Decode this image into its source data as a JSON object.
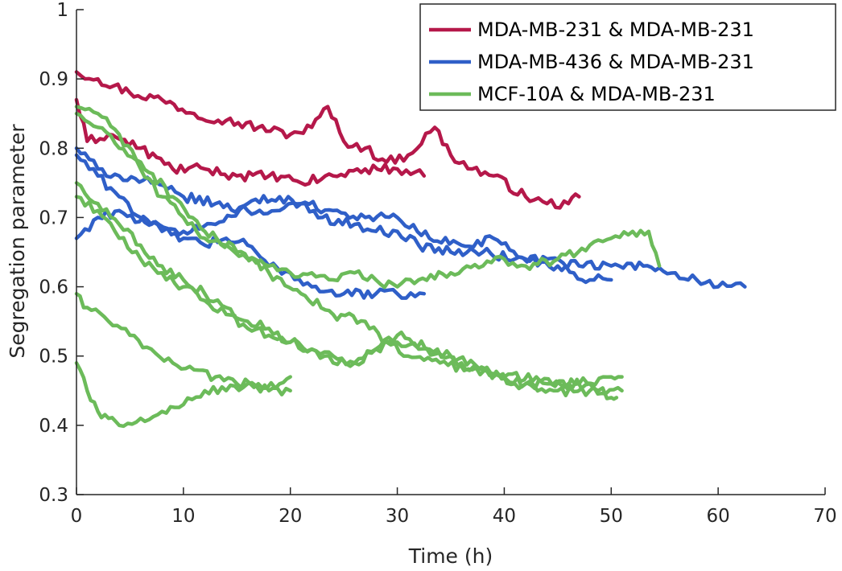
{
  "chart_data": {
    "type": "line",
    "title": "",
    "xlabel": "Time (h)",
    "ylabel": "Segregation parameter",
    "xlim": [
      0,
      70
    ],
    "ylim": [
      0.3,
      1
    ],
    "xticks": [
      0,
      10,
      20,
      30,
      40,
      50,
      60,
      70
    ],
    "yticks": [
      0.3,
      0.4,
      0.5,
      0.6,
      0.7,
      0.8,
      0.9,
      1
    ],
    "xtick_labels": [
      "0",
      "10",
      "20",
      "30",
      "40",
      "50",
      "60",
      "70"
    ],
    "ytick_labels": [
      "0.3",
      "0.4",
      "0.5",
      "0.6",
      "0.7",
      "0.8",
      "0.9",
      "1"
    ],
    "grid": false,
    "legend_position": "top-right",
    "legend": [
      {
        "label": "MDA-MB-231 & MDA-MB-231",
        "color": "#B5184A"
      },
      {
        "label": "MDA-MB-436 & MDA-MB-231",
        "color": "#2F5FC8"
      },
      {
        "label": "MCF-10A & MDA-MB-231",
        "color": "#6CBB5A"
      }
    ],
    "series": [
      {
        "group": 0,
        "color": "#B5184A",
        "x": [
          0,
          2,
          5,
          8,
          11,
          14,
          17,
          20,
          22,
          23.5,
          25,
          27,
          29,
          31,
          33.5,
          35,
          37,
          39,
          42,
          44,
          46,
          47
        ],
        "y": [
          0.91,
          0.9,
          0.88,
          0.87,
          0.85,
          0.84,
          0.83,
          0.82,
          0.83,
          0.86,
          0.81,
          0.8,
          0.78,
          0.79,
          0.83,
          0.79,
          0.77,
          0.76,
          0.73,
          0.72,
          0.72,
          0.73
        ]
      },
      {
        "group": 0,
        "color": "#B5184A",
        "x": [
          0,
          1,
          3,
          6,
          9,
          12,
          15,
          18,
          21,
          24,
          27,
          30,
          32.5
        ],
        "y": [
          0.87,
          0.81,
          0.82,
          0.8,
          0.77,
          0.77,
          0.76,
          0.76,
          0.75,
          0.76,
          0.77,
          0.77,
          0.76
        ]
      },
      {
        "group": 1,
        "color": "#2F5FC8",
        "x": [
          0,
          2,
          4,
          7,
          10,
          13,
          16,
          19,
          21,
          23,
          26,
          28,
          30,
          32,
          35,
          38,
          41,
          44,
          47,
          50,
          53,
          56,
          58,
          60,
          62.5
        ],
        "y": [
          0.8,
          0.77,
          0.76,
          0.75,
          0.73,
          0.72,
          0.71,
          0.71,
          0.72,
          0.7,
          0.69,
          0.68,
          0.68,
          0.66,
          0.65,
          0.65,
          0.64,
          0.64,
          0.63,
          0.63,
          0.63,
          0.62,
          0.61,
          0.6,
          0.6
        ]
      },
      {
        "group": 1,
        "color": "#2F5FC8",
        "x": [
          0,
          2,
          4,
          6,
          8,
          10,
          13,
          16,
          19,
          21,
          24,
          27,
          30,
          33,
          36,
          39,
          42,
          45,
          48,
          50
        ],
        "y": [
          0.79,
          0.76,
          0.73,
          0.7,
          0.68,
          0.68,
          0.69,
          0.72,
          0.73,
          0.72,
          0.71,
          0.7,
          0.7,
          0.67,
          0.66,
          0.67,
          0.64,
          0.63,
          0.61,
          0.61
        ]
      },
      {
        "group": 1,
        "color": "#2F5FC8",
        "x": [
          0,
          2,
          4,
          7,
          10,
          12,
          14,
          16,
          18,
          20,
          22,
          25,
          28,
          30,
          32.5
        ],
        "y": [
          0.67,
          0.7,
          0.71,
          0.69,
          0.67,
          0.66,
          0.67,
          0.66,
          0.63,
          0.62,
          0.6,
          0.59,
          0.59,
          0.59,
          0.59
        ]
      },
      {
        "group": 2,
        "color": "#6CBB5A",
        "x": [
          0,
          2,
          4,
          6,
          8,
          10,
          12,
          14,
          16,
          18,
          20,
          22,
          24,
          26,
          28,
          30,
          32,
          35,
          38,
          40,
          42,
          45,
          48,
          50,
          52,
          53.5,
          54.5
        ],
        "y": [
          0.86,
          0.85,
          0.82,
          0.77,
          0.73,
          0.7,
          0.67,
          0.66,
          0.64,
          0.63,
          0.62,
          0.62,
          0.61,
          0.62,
          0.61,
          0.6,
          0.61,
          0.62,
          0.63,
          0.64,
          0.63,
          0.64,
          0.66,
          0.67,
          0.68,
          0.68,
          0.63
        ]
      },
      {
        "group": 2,
        "color": "#6CBB5A",
        "x": [
          0,
          2,
          4,
          6,
          9,
          12,
          15,
          18,
          21,
          24,
          27,
          29,
          31,
          34,
          37,
          40,
          43,
          46,
          48,
          50,
          50.5
        ],
        "y": [
          0.85,
          0.83,
          0.8,
          0.78,
          0.73,
          0.68,
          0.65,
          0.62,
          0.59,
          0.56,
          0.55,
          0.52,
          0.5,
          0.49,
          0.48,
          0.47,
          0.47,
          0.46,
          0.46,
          0.44,
          0.44
        ]
      },
      {
        "group": 2,
        "color": "#6CBB5A",
        "x": [
          0,
          2,
          4,
          6,
          8,
          10,
          12,
          14,
          16,
          18,
          20,
          22,
          24,
          26,
          28,
          30,
          32,
          35,
          38,
          41,
          44,
          47,
          50,
          51
        ],
        "y": [
          0.75,
          0.72,
          0.69,
          0.66,
          0.63,
          0.61,
          0.59,
          0.57,
          0.55,
          0.54,
          0.52,
          0.51,
          0.5,
          0.49,
          0.51,
          0.52,
          0.51,
          0.5,
          0.48,
          0.46,
          0.46,
          0.46,
          0.47,
          0.47
        ]
      },
      {
        "group": 2,
        "color": "#6CBB5A",
        "x": [
          0,
          2,
          4,
          6,
          8,
          10,
          12,
          14,
          16,
          18,
          20,
          22,
          24,
          26,
          28,
          30,
          33,
          36,
          39,
          42,
          45,
          48,
          51
        ],
        "y": [
          0.73,
          0.71,
          0.67,
          0.64,
          0.62,
          0.6,
          0.58,
          0.56,
          0.54,
          0.53,
          0.52,
          0.51,
          0.49,
          0.49,
          0.51,
          0.53,
          0.51,
          0.49,
          0.47,
          0.46,
          0.45,
          0.45,
          0.45
        ]
      },
      {
        "group": 2,
        "color": "#6CBB5A",
        "x": [
          0,
          1,
          3,
          5,
          7,
          9,
          11,
          13,
          15,
          17,
          19,
          20
        ],
        "y": [
          0.59,
          0.57,
          0.55,
          0.53,
          0.51,
          0.49,
          0.48,
          0.47,
          0.46,
          0.46,
          0.46,
          0.47
        ]
      },
      {
        "group": 2,
        "color": "#6CBB5A",
        "x": [
          0,
          1,
          2,
          3,
          4,
          6,
          8,
          10,
          12,
          14,
          16,
          18,
          20
        ],
        "y": [
          0.49,
          0.45,
          0.42,
          0.41,
          0.4,
          0.41,
          0.42,
          0.43,
          0.45,
          0.45,
          0.46,
          0.45,
          0.45
        ]
      }
    ]
  }
}
